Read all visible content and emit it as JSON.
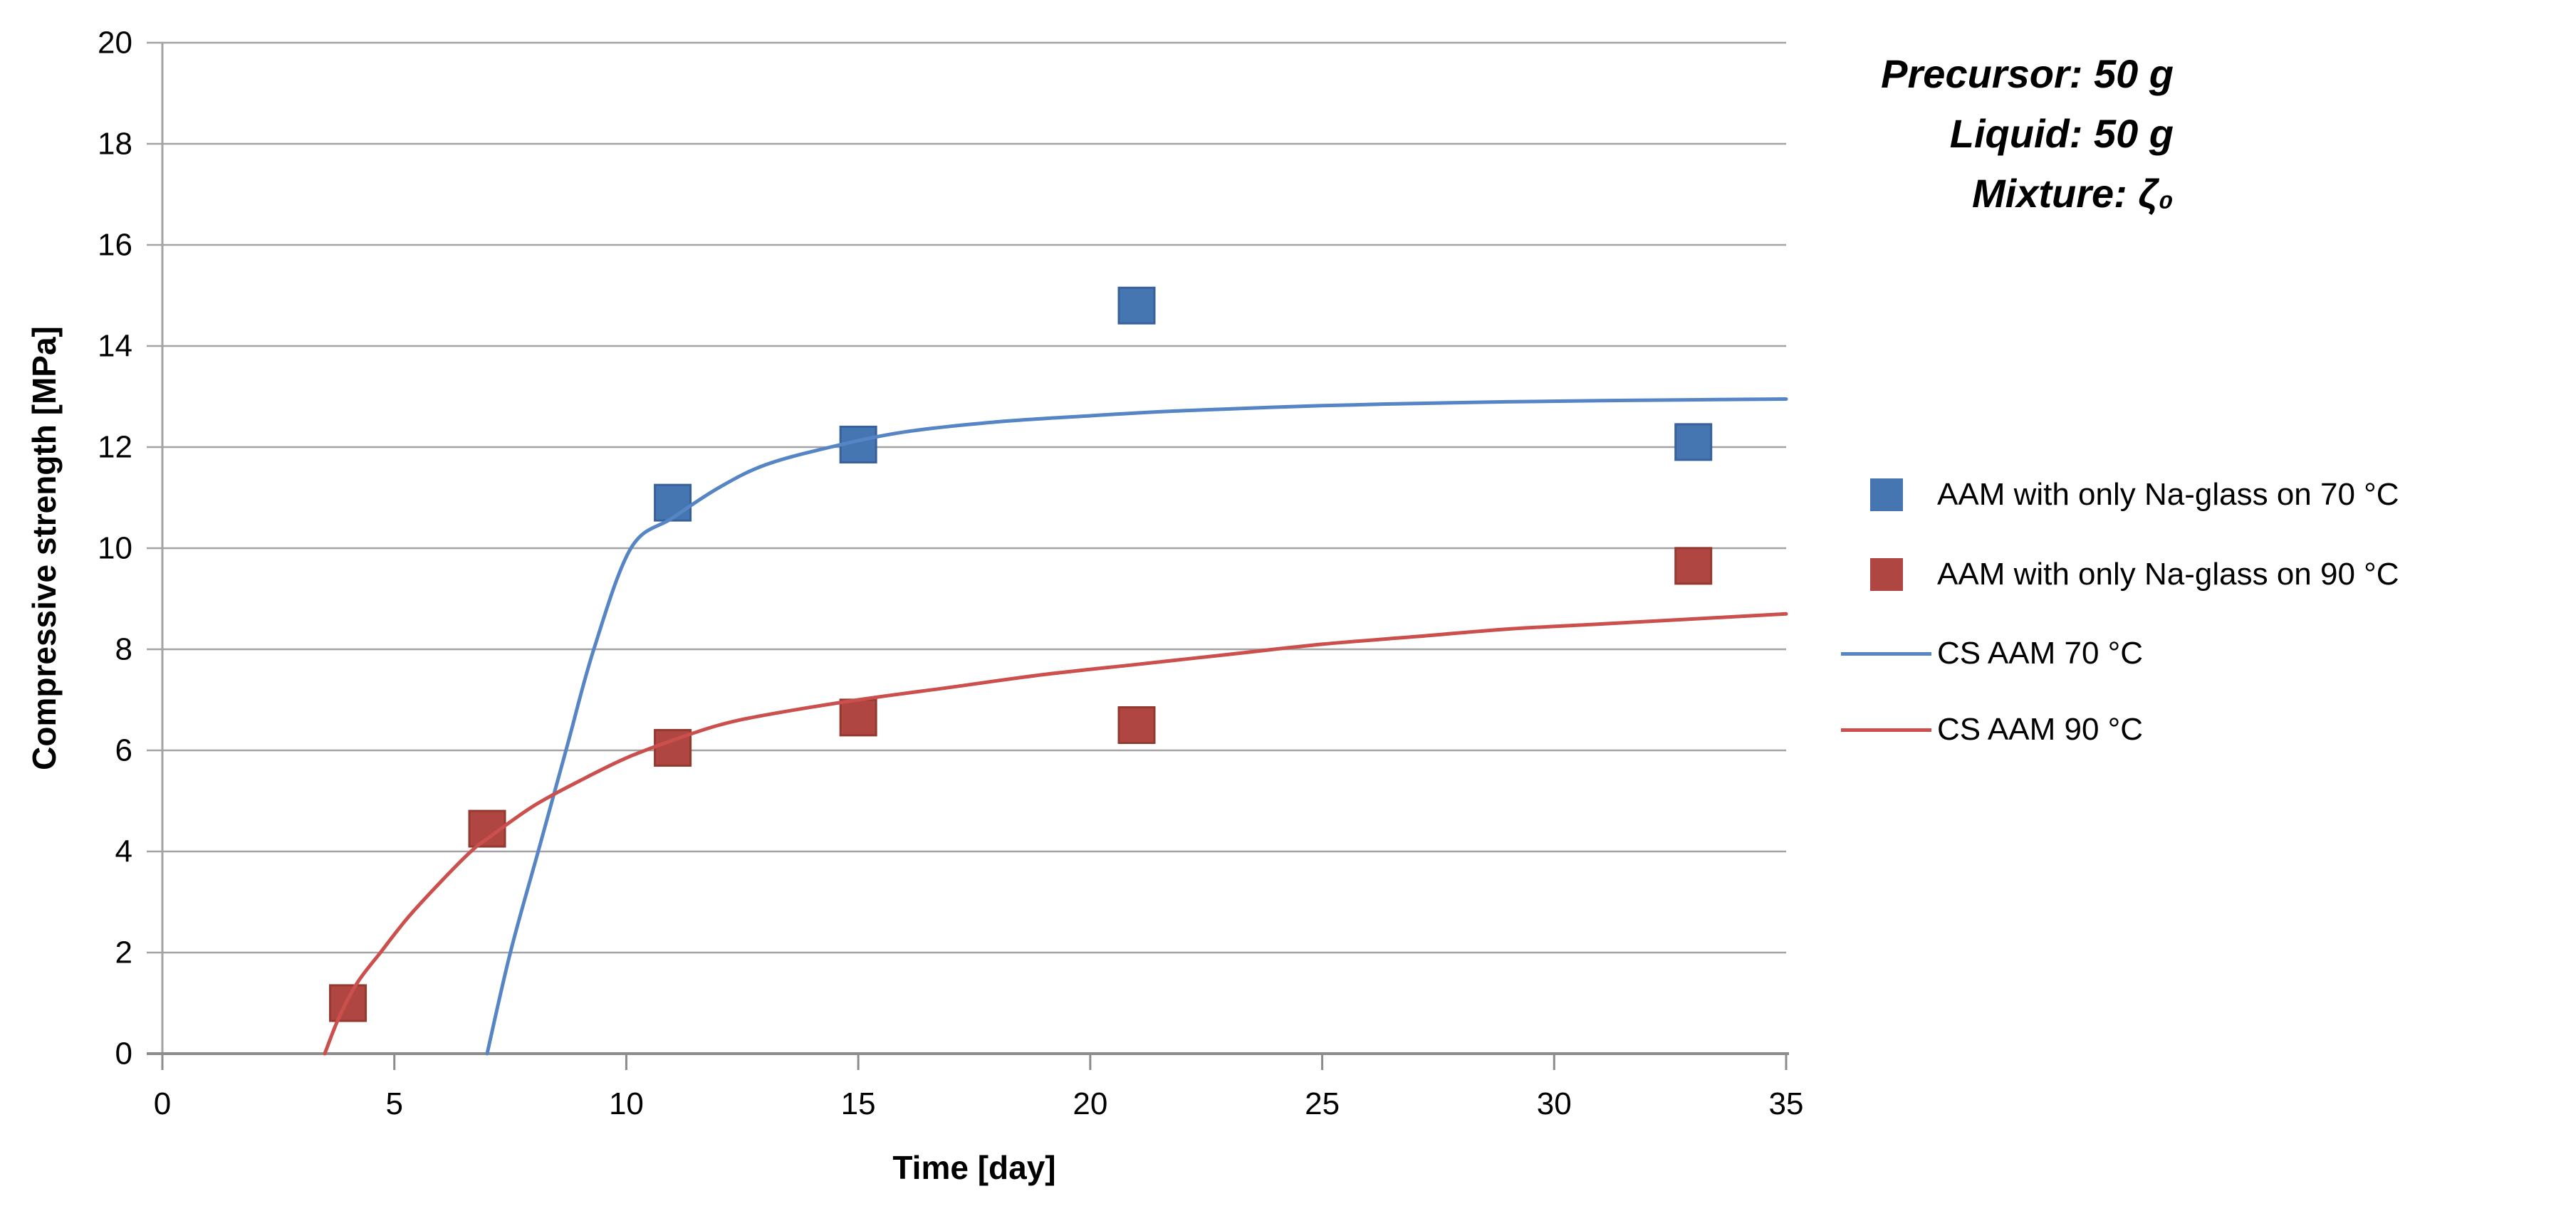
{
  "chart_data": {
    "type": "scatter",
    "title": "",
    "xlabel": "Time [day]",
    "ylabel": "Compressive strength [MPa]",
    "xlim": [
      0,
      35
    ],
    "ylim": [
      0,
      20
    ],
    "x_ticks": [
      0,
      5,
      10,
      15,
      20,
      25,
      30,
      35
    ],
    "y_ticks": [
      0,
      2,
      4,
      6,
      8,
      10,
      12,
      14,
      16,
      18,
      20
    ],
    "grid": "horizontal-major",
    "legend_position": "right",
    "colors": {
      "gridline": "#A3A3A3",
      "x_axis_line": "#8C8C8C",
      "y_axis_line": "#A3A3A3",
      "text": "#000000",
      "blue": "#4F81BD",
      "red": "#C0504D"
    },
    "annotation": {
      "lines": [
        "Precursor: 50 g",
        "Liquid: 50 g",
        "Mixture: ζ₀"
      ]
    },
    "series": [
      {
        "name": "AAM with only Na-glass on 70 °C",
        "kind": "scatter",
        "color": "#4676B1",
        "edge": "#38619B",
        "points": [
          [
            11,
            10.9
          ],
          [
            15,
            12.05
          ],
          [
            21,
            14.8
          ],
          [
            33,
            12.1
          ]
        ]
      },
      {
        "name": "AAM with only Na-glass on 90 °C",
        "kind": "scatter",
        "color": "#B04642",
        "edge": "#93392F",
        "points": [
          [
            4,
            1.0
          ],
          [
            7,
            4.45
          ],
          [
            11,
            6.05
          ],
          [
            15,
            6.65
          ],
          [
            21,
            6.5
          ],
          [
            33,
            9.65
          ]
        ]
      },
      {
        "name": "CS AAM 70 °C",
        "kind": "line",
        "color": "#5585C5",
        "points": [
          [
            7,
            0
          ],
          [
            7.5,
            2
          ],
          [
            8.1,
            4
          ],
          [
            8.7,
            6
          ],
          [
            9.3,
            8
          ],
          [
            10.1,
            10
          ],
          [
            11,
            10.6
          ],
          [
            12,
            11.2
          ],
          [
            13,
            11.65
          ],
          [
            14.4,
            12.0
          ],
          [
            16,
            12.3
          ],
          [
            18,
            12.5
          ],
          [
            20,
            12.62
          ],
          [
            22,
            12.72
          ],
          [
            25,
            12.82
          ],
          [
            28,
            12.88
          ],
          [
            31,
            12.92
          ],
          [
            35,
            12.95
          ]
        ]
      },
      {
        "name": "CS AAM 90 °C",
        "kind": "line",
        "color": "#CB4F4C",
        "points": [
          [
            3.5,
            0
          ],
          [
            3.8,
            0.7
          ],
          [
            4.2,
            1.4
          ],
          [
            4.7,
            2.0
          ],
          [
            5.3,
            2.7
          ],
          [
            6.0,
            3.4
          ],
          [
            6.65,
            4.0
          ],
          [
            7,
            4.25
          ],
          [
            8,
            4.9
          ],
          [
            9,
            5.4
          ],
          [
            10,
            5.85
          ],
          [
            11,
            6.2
          ],
          [
            12,
            6.5
          ],
          [
            13,
            6.7
          ],
          [
            15,
            7.0
          ],
          [
            17,
            7.25
          ],
          [
            19,
            7.5
          ],
          [
            21,
            7.7
          ],
          [
            23,
            7.9
          ],
          [
            25,
            8.1
          ],
          [
            27,
            8.25
          ],
          [
            29,
            8.4
          ],
          [
            31,
            8.5
          ],
          [
            33,
            8.6
          ],
          [
            35,
            8.7
          ]
        ]
      }
    ]
  }
}
